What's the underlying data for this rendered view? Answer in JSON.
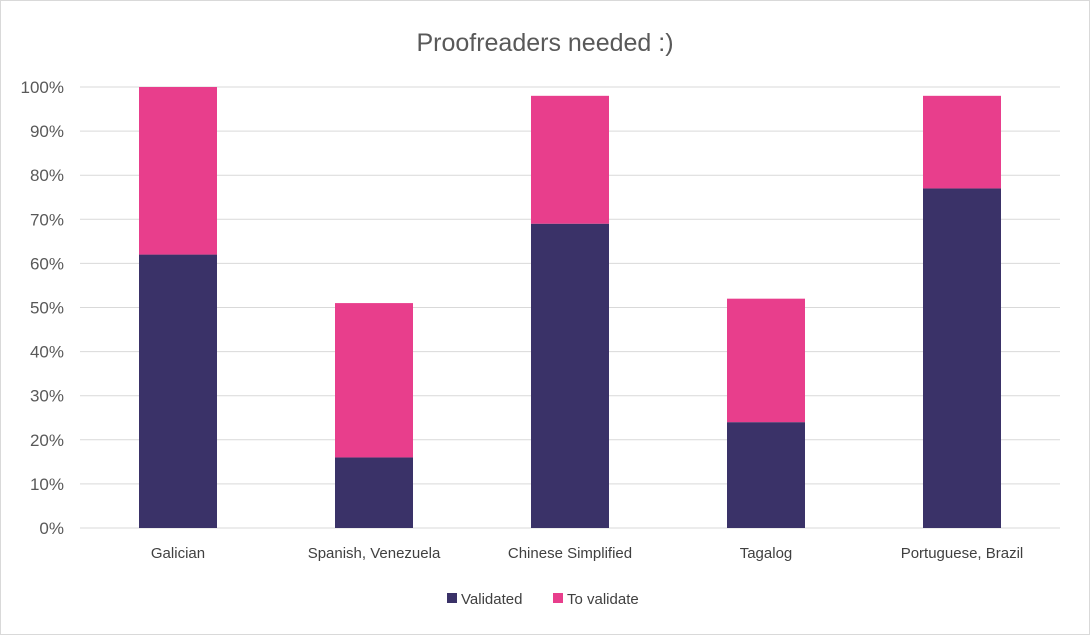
{
  "chart_data": {
    "type": "bar",
    "stacked": true,
    "title": "Proofreaders needed :)",
    "categories": [
      "Galician",
      "Spanish, Venezuela",
      "Chinese Simplified",
      "Tagalog",
      "Portuguese, Brazil"
    ],
    "series": [
      {
        "name": "Validated",
        "values": [
          62,
          16,
          69,
          24,
          77
        ],
        "color": "#3a3268"
      },
      {
        "name": "To validate",
        "values": [
          38,
          35,
          29,
          28,
          21
        ],
        "color": "#e83e8c"
      }
    ],
    "y_ticks": [
      "0%",
      "10%",
      "20%",
      "30%",
      "40%",
      "50%",
      "60%",
      "70%",
      "80%",
      "90%",
      "100%"
    ],
    "ylim": [
      0,
      100
    ],
    "grid": true,
    "legend_position": "bottom"
  }
}
